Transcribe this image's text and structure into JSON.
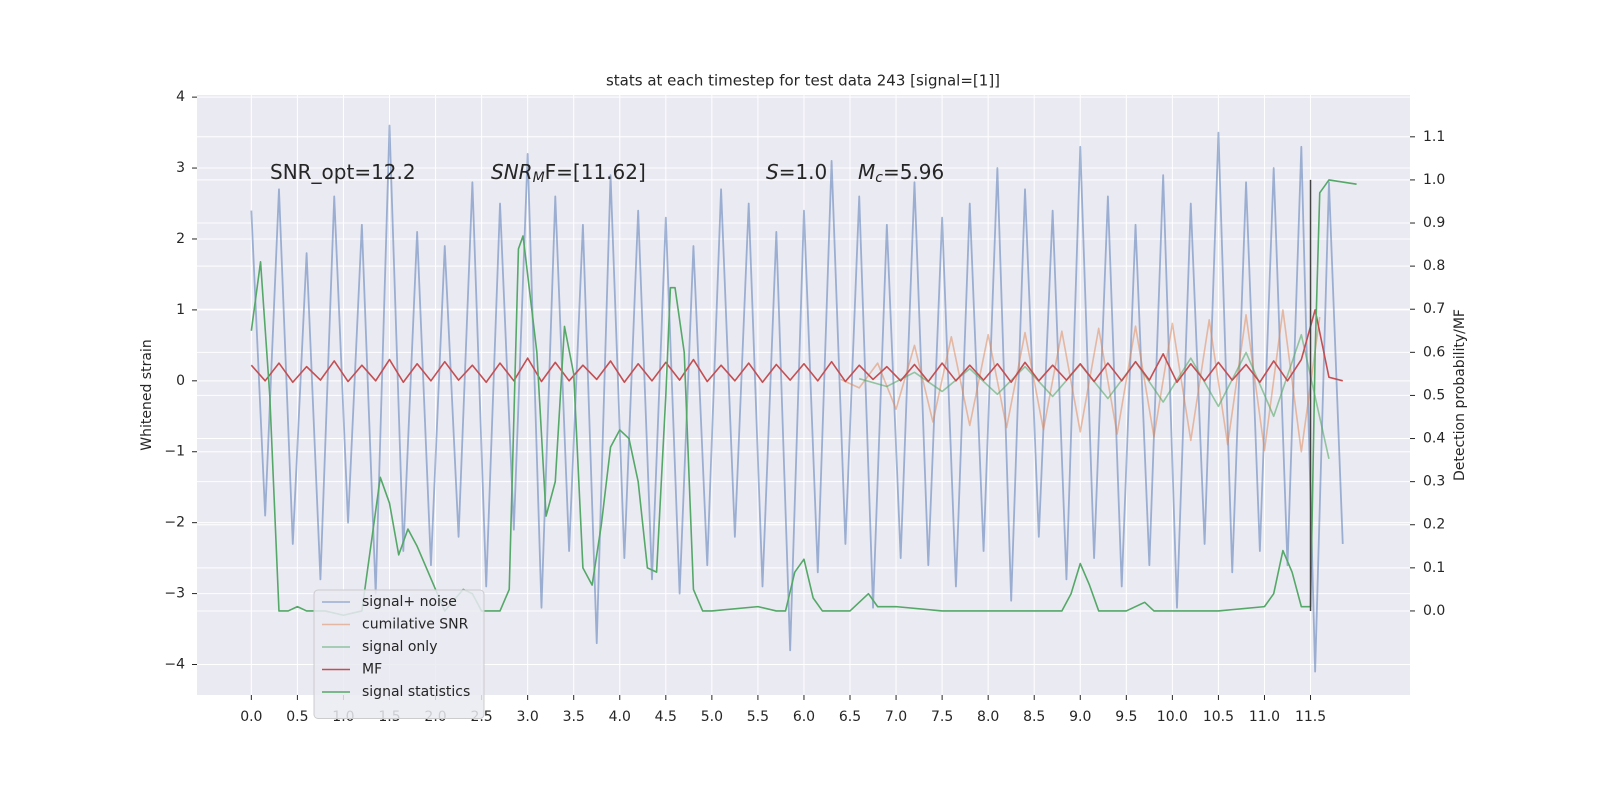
{
  "chart_data": {
    "type": "line",
    "title": "stats at each timestep for test data 243 [signal=[1]]",
    "y_label": "Whitened strain",
    "y2_label": "Detection probability/MF",
    "annotations": [
      {
        "text": "SNR_opt=12.2"
      },
      {
        "text": "SNR",
        "sub": "M",
        "tail": "F=[11.62]"
      },
      {
        "text": "S",
        "tail": "=1.0"
      },
      {
        "text": "M",
        "sub": "c",
        "tail": "=5.96"
      }
    ],
    "xlim": [
      -0.59,
      12.58
    ],
    "ylim": [
      -4.43,
      4.03
    ],
    "y2lim": [
      -0.195,
      1.197
    ],
    "xticks": [
      {
        "value": 0,
        "label": "0.0"
      },
      0.5,
      {
        "value": 1,
        "label": "1.0"
      },
      1.5,
      {
        "value": 2,
        "label": "2.0"
      },
      2.5,
      {
        "value": 3,
        "label": "3.0"
      },
      3.5,
      {
        "value": 4,
        "label": "4.0"
      },
      4.5,
      {
        "value": 5,
        "label": "5.0"
      },
      5.5,
      {
        "value": 6,
        "label": "6.0"
      },
      6.5,
      {
        "value": 7,
        "label": "7.0"
      },
      7.5,
      {
        "value": 8,
        "label": "8.0"
      },
      8.5,
      {
        "value": 9,
        "label": "9.0"
      },
      9.5,
      {
        "value": 10,
        "label": "10.0"
      },
      10.5,
      {
        "value": 11,
        "label": "11.0"
      },
      11.5
    ],
    "yticks": [
      {
        "value": -4,
        "label": "−4"
      },
      {
        "value": -3,
        "label": "−3"
      },
      {
        "value": -2,
        "label": "−2"
      },
      {
        "value": -1,
        "label": "−1"
      },
      0,
      1,
      2,
      3,
      4
    ],
    "y2ticks": [
      {
        "value": 0,
        "label": "0.0"
      },
      0.1,
      0.2,
      0.3,
      0.4,
      0.5,
      0.6,
      0.7,
      0.8,
      0.9,
      {
        "value": 1,
        "label": "1.0"
      },
      1.1
    ],
    "grid": true,
    "legend": "lower left",
    "series": [
      {
        "name": "signal+ noise",
        "color": "#4c72b0",
        "opacity": 0.5,
        "x": [
          0,
          0.15,
          0.3,
          0.45,
          0.6,
          0.75,
          0.9,
          1.05,
          1.2,
          1.35,
          1.5,
          1.65,
          1.8,
          1.95,
          2.1,
          2.25,
          2.4,
          2.55,
          2.7,
          2.85,
          3,
          3.15,
          3.3,
          3.45,
          3.6,
          3.75,
          3.9,
          4.05,
          4.2,
          4.35,
          4.5,
          4.65,
          4.8,
          4.95,
          5.1,
          5.25,
          5.4,
          5.55,
          5.7,
          5.85,
          6,
          6.15,
          6.3,
          6.45,
          6.6,
          6.75,
          6.9,
          7.05,
          7.2,
          7.35,
          7.5,
          7.65,
          7.8,
          7.95,
          8.1,
          8.25,
          8.4,
          8.55,
          8.7,
          8.85,
          9,
          9.15,
          9.3,
          9.45,
          9.6,
          9.75,
          9.9,
          10.05,
          10.2,
          10.35,
          10.5,
          10.65,
          10.8,
          10.95,
          11.1,
          11.25,
          11.4,
          11.55,
          11.7,
          11.85
        ],
        "values": [
          2.4,
          -1.9,
          2.7,
          -2.3,
          1.8,
          -2.8,
          2.6,
          -2.0,
          2.2,
          -3.0,
          3.6,
          -2.4,
          2.1,
          -2.6,
          1.9,
          -2.2,
          2.8,
          -2.9,
          2.5,
          -2.1,
          3.2,
          -3.2,
          2.6,
          -2.4,
          2.2,
          -3.7,
          2.9,
          -2.5,
          2.4,
          -2.8,
          2.3,
          -3.0,
          1.9,
          -2.6,
          2.7,
          -2.2,
          2.5,
          -2.9,
          2.1,
          -3.8,
          2.4,
          -2.7,
          3.1,
          -2.3,
          2.6,
          -3.2,
          2.2,
          -2.5,
          2.8,
          -2.6,
          2.3,
          -2.9,
          2.5,
          -2.4,
          3.0,
          -3.1,
          2.7,
          -2.2,
          2.4,
          -2.8,
          3.3,
          -2.5,
          2.6,
          -2.9,
          2.2,
          -2.6,
          2.9,
          -3.2,
          2.5,
          -2.3,
          3.5,
          -2.7,
          2.8,
          -2.4,
          3.0,
          -2.6,
          3.3,
          -4.1,
          2.8,
          -2.3
        ]
      },
      {
        "name": "cumilative SNR",
        "color": "#dd8452",
        "opacity": 0.5,
        "x": [
          6.4,
          6.6,
          6.8,
          7.0,
          7.2,
          7.4,
          7.6,
          7.8,
          8.0,
          8.2,
          8.4,
          8.6,
          8.8,
          9.0,
          9.2,
          9.4,
          9.6,
          9.8,
          10.0,
          10.2,
          10.4,
          10.6,
          10.8,
          11.0,
          11.2,
          11.4,
          11.6
        ],
        "values": [
          0.02,
          -0.1,
          0.25,
          -0.4,
          0.5,
          -0.58,
          0.62,
          -0.63,
          0.65,
          -0.66,
          0.68,
          -0.69,
          0.7,
          -0.72,
          0.74,
          -0.75,
          0.77,
          -0.79,
          0.81,
          -0.84,
          0.86,
          -0.9,
          0.93,
          -0.98,
          1.0,
          -1.0,
          0.9
        ]
      },
      {
        "name": "signal only",
        "color": "#55a868",
        "opacity": 0.6,
        "x": [
          6.6,
          6.9,
          7.2,
          7.5,
          7.8,
          8.1,
          8.4,
          8.7,
          9.0,
          9.3,
          9.6,
          9.9,
          10.2,
          10.5,
          10.8,
          11.1,
          11.4,
          11.7
        ],
        "values": [
          0.03,
          -0.08,
          0.12,
          -0.15,
          0.17,
          -0.19,
          0.2,
          -0.22,
          0.23,
          -0.25,
          0.27,
          -0.3,
          0.32,
          -0.36,
          0.4,
          -0.5,
          0.65,
          -1.1
        ]
      },
      {
        "name": "MF",
        "color": "#c44e52",
        "opacity": 1,
        "x": [
          0,
          0.15,
          0.3,
          0.45,
          0.6,
          0.75,
          0.9,
          1.05,
          1.2,
          1.35,
          1.5,
          1.65,
          1.8,
          1.95,
          2.1,
          2.25,
          2.4,
          2.55,
          2.7,
          2.85,
          3,
          3.15,
          3.3,
          3.45,
          3.6,
          3.75,
          3.9,
          4.05,
          4.2,
          4.35,
          4.5,
          4.65,
          4.8,
          4.95,
          5.1,
          5.25,
          5.4,
          5.55,
          5.7,
          5.85,
          6,
          6.15,
          6.3,
          6.45,
          6.6,
          6.75,
          6.9,
          7.05,
          7.2,
          7.35,
          7.5,
          7.65,
          7.8,
          7.95,
          8.1,
          8.25,
          8.4,
          8.55,
          8.7,
          8.85,
          9,
          9.15,
          9.3,
          9.45,
          9.6,
          9.75,
          9.9,
          10.05,
          10.2,
          10.35,
          10.5,
          10.65,
          10.8,
          10.95,
          11.1,
          11.25,
          11.4,
          11.55,
          11.7,
          11.85
        ],
        "values": [
          0.22,
          0.0,
          0.25,
          -0.02,
          0.2,
          0.01,
          0.28,
          -0.01,
          0.22,
          0.0,
          0.3,
          -0.02,
          0.24,
          0.0,
          0.27,
          0.01,
          0.22,
          -0.02,
          0.25,
          0.0,
          0.32,
          -0.01,
          0.26,
          0.0,
          0.22,
          0.02,
          0.28,
          -0.02,
          0.24,
          0.0,
          0.26,
          0.01,
          0.3,
          -0.01,
          0.22,
          0.0,
          0.25,
          -0.02,
          0.23,
          0.01,
          0.24,
          0.0,
          0.27,
          -0.01,
          0.22,
          0.02,
          0.2,
          0.0,
          0.23,
          -0.01,
          0.25,
          0.0,
          0.22,
          0.01,
          0.24,
          -0.02,
          0.26,
          0.0,
          0.22,
          0.01,
          0.24,
          -0.01,
          0.25,
          0.0,
          0.27,
          0.01,
          0.38,
          -0.02,
          0.24,
          0.0,
          0.26,
          0.01,
          0.23,
          -0.02,
          0.28,
          0.0,
          0.3,
          1.0,
          0.05,
          0.0
        ]
      },
      {
        "name": "signal statistics",
        "color": "#55a868",
        "opacity": 1,
        "axis": "y2",
        "x": [
          0,
          0.1,
          0.2,
          0.3,
          0.4,
          0.5,
          0.6,
          0.8,
          1.0,
          1.2,
          1.4,
          1.5,
          1.6,
          1.7,
          1.8,
          1.9,
          2.0,
          2.1,
          2.3,
          2.4,
          2.5,
          2.7,
          2.8,
          2.9,
          2.95,
          3.1,
          3.2,
          3.3,
          3.4,
          3.5,
          3.6,
          3.7,
          3.8,
          3.9,
          4.0,
          4.1,
          4.2,
          4.3,
          4.4,
          4.5,
          4.55,
          4.6,
          4.7,
          4.8,
          4.9,
          5.0,
          5.5,
          5.7,
          5.8,
          5.9,
          6.0,
          6.1,
          6.2,
          6.5,
          6.7,
          6.8,
          7.0,
          7.5,
          8.0,
          8.8,
          8.9,
          9.0,
          9.1,
          9.2,
          9.5,
          9.7,
          9.8,
          10.5,
          11.0,
          11.1,
          11.2,
          11.3,
          11.4,
          11.5,
          11.55,
          11.6,
          11.7,
          12.0
        ],
        "values": [
          0.65,
          0.81,
          0.5,
          0.0,
          0.0,
          0.01,
          0.0,
          0.0,
          -0.01,
          0.0,
          0.31,
          0.25,
          0.13,
          0.19,
          0.15,
          0.1,
          0.05,
          0.0,
          0.05,
          0.04,
          0.0,
          0.0,
          0.05,
          0.84,
          0.87,
          0.6,
          0.22,
          0.3,
          0.66,
          0.55,
          0.1,
          0.06,
          0.2,
          0.38,
          0.42,
          0.4,
          0.3,
          0.1,
          0.09,
          0.5,
          0.75,
          0.75,
          0.6,
          0.05,
          0.0,
          0.0,
          0.01,
          0.0,
          0.0,
          0.09,
          0.12,
          0.03,
          0.0,
          0.0,
          0.04,
          0.01,
          0.01,
          0.0,
          0.0,
          0.0,
          0.04,
          0.11,
          0.06,
          0.0,
          0.0,
          0.02,
          0.0,
          0.0,
          0.01,
          0.04,
          0.14,
          0.09,
          0.01,
          0.01,
          0.6,
          0.97,
          1.0,
          0.99
        ]
      }
    ],
    "vline": {
      "x": 11.5,
      "y2": [
        0,
        1
      ],
      "color": "#444444"
    }
  }
}
